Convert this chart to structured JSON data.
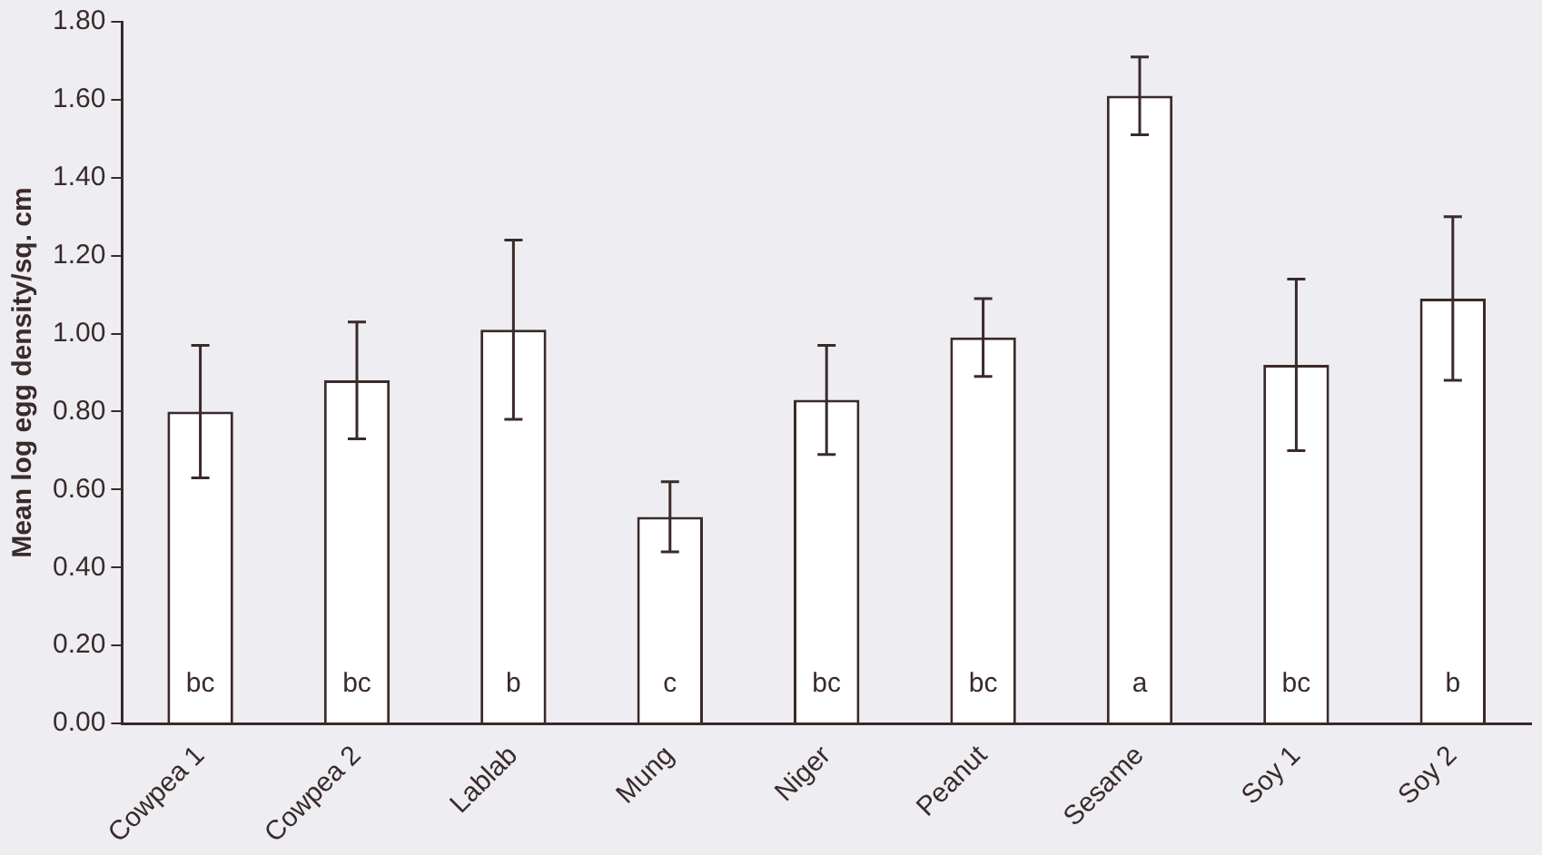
{
  "chart_data": {
    "type": "bar",
    "ylabel": "Mean log egg density/sq. cm",
    "categories": [
      "Cowpea 1",
      "Cowpea 2",
      "Lablab",
      "Mung",
      "Niger",
      "Peanut",
      "Sesame",
      "Soy 1",
      "Soy 2"
    ],
    "values": [
      0.8,
      0.88,
      1.01,
      0.53,
      0.83,
      0.99,
      1.61,
      0.92,
      1.09
    ],
    "errors": [
      0.17,
      0.15,
      0.23,
      0.09,
      0.14,
      0.1,
      0.1,
      0.22,
      0.21
    ],
    "color": "#ffffff",
    "ylim": [
      0,
      1.8
    ],
    "yticks": [
      {
        "value": 0,
        "label": "0.00"
      },
      {
        "value": 0.2,
        "label": "0.20"
      },
      {
        "value": 0.4,
        "label": "0.40"
      },
      {
        "value": 0.6,
        "label": "0.60"
      },
      {
        "value": 0.8,
        "label": "0.80"
      },
      {
        "value": 1.0,
        "label": "1.00"
      },
      {
        "value": 1.2,
        "label": "1.20"
      },
      {
        "value": 1.4,
        "label": "1.40"
      },
      {
        "value": 1.6,
        "label": "1.60"
      },
      {
        "value": 1.8,
        "label": "1.80"
      }
    ],
    "annotations": [
      {
        "text": "bc",
        "x": "Cowpea 1",
        "y": 0.1
      },
      {
        "text": "bc",
        "x": "Cowpea 2",
        "y": 0.1
      },
      {
        "text": "b",
        "x": "Lablab",
        "y": 0.1
      },
      {
        "text": "c",
        "x": "Mung",
        "y": 0.1
      },
      {
        "text": "bc",
        "x": "Niger",
        "y": 0.1
      },
      {
        "text": "bc",
        "x": "Peanut",
        "y": 0.1
      },
      {
        "text": "a",
        "x": "Sesame",
        "y": 0.1
      },
      {
        "text": "bc",
        "x": "Soy 1",
        "y": 0.1
      },
      {
        "text": "b",
        "x": "Soy 2",
        "y": 0.1
      }
    ],
    "grid": false,
    "legend": false
  }
}
